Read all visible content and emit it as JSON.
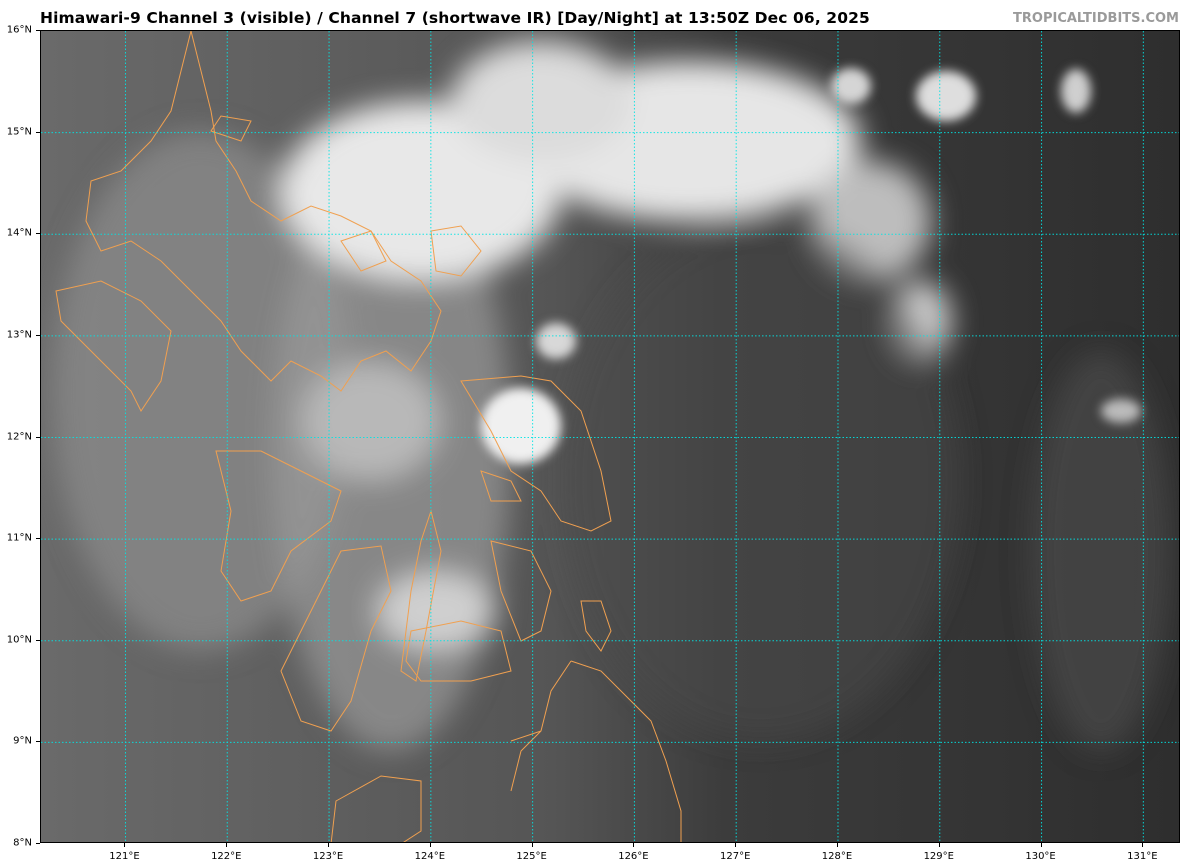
{
  "title": "Himawari-9 Channel 3 (visible) / Channel 7 (shortwave IR) [Day/Night] at 13:50Z Dec 06, 2025",
  "brand": "TROPICALTIDBITS.COM",
  "map": {
    "lon_range": [
      120.17,
      131.37
    ],
    "lat_range": [
      8,
      16
    ],
    "gridline_color": "#00e5e5",
    "coastline_color": "#f0a050",
    "lon_ticks": [
      {
        "value": 121,
        "label": "121°E"
      },
      {
        "value": 122,
        "label": "122°E"
      },
      {
        "value": 123,
        "label": "123°E"
      },
      {
        "value": 124,
        "label": "124°E"
      },
      {
        "value": 125,
        "label": "125°E"
      },
      {
        "value": 126,
        "label": "126°E"
      },
      {
        "value": 127,
        "label": "127°E"
      },
      {
        "value": 128,
        "label": "128°E"
      },
      {
        "value": 129,
        "label": "129°E"
      },
      {
        "value": 130,
        "label": "130°E"
      },
      {
        "value": 131,
        "label": "131°E"
      }
    ],
    "lat_ticks": [
      {
        "value": 8,
        "label": "8°N"
      },
      {
        "value": 9,
        "label": "9°N"
      },
      {
        "value": 10,
        "label": "10°N"
      },
      {
        "value": 11,
        "label": "11°N"
      },
      {
        "value": 12,
        "label": "12°N"
      },
      {
        "value": 13,
        "label": "13°N"
      },
      {
        "value": 14,
        "label": "14°N"
      },
      {
        "value": 15,
        "label": "15°N"
      },
      {
        "value": 16,
        "label": "16°N"
      }
    ]
  }
}
